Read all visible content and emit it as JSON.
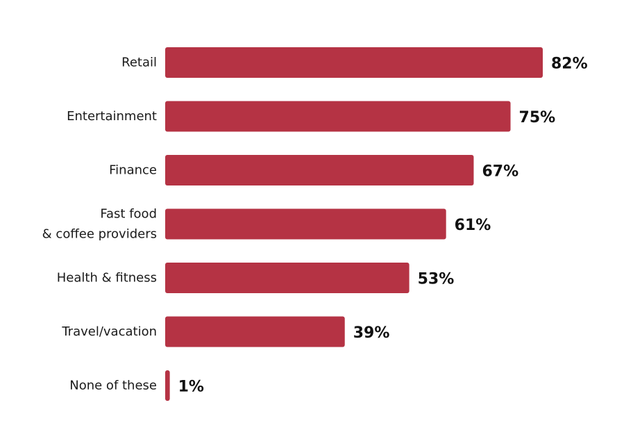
{
  "chart_data": {
    "type": "bar",
    "orientation": "horizontal",
    "categories": [
      [
        "Retail"
      ],
      [
        "Entertainment"
      ],
      [
        "Finance"
      ],
      [
        "Fast food",
        "& coffee providers"
      ],
      [
        "Health & fitness"
      ],
      [
        "Travel/vacation"
      ],
      [
        "None of these"
      ]
    ],
    "values": [
      82,
      75,
      67,
      61,
      53,
      39,
      1
    ],
    "value_labels": [
      "82%",
      "75%",
      "67%",
      "61%",
      "53%",
      "39%",
      "1%"
    ],
    "title": "",
    "xlabel": "",
    "ylabel": "",
    "xlim": [
      0,
      82
    ],
    "grid": false,
    "legend": "none",
    "bar_color": "#b53344"
  }
}
